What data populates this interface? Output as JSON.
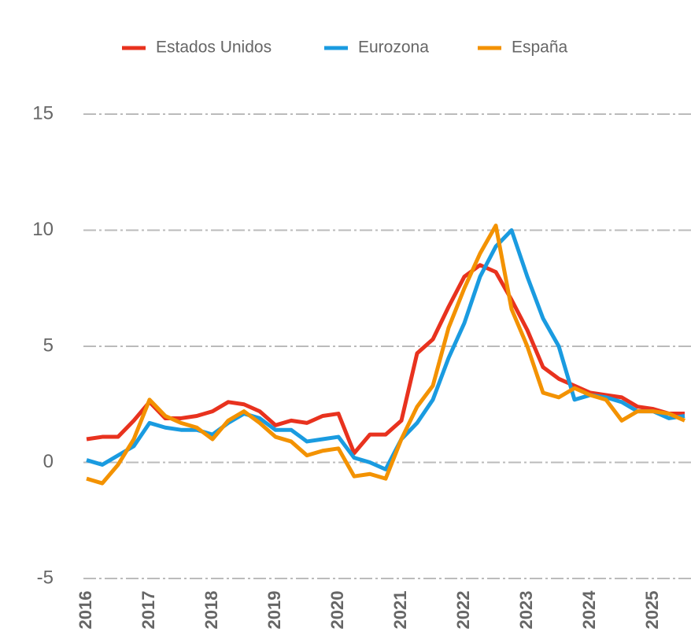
{
  "chart_data": {
    "type": "line",
    "x": [
      2016,
      2016.25,
      2016.5,
      2016.75,
      2017,
      2017.25,
      2017.5,
      2017.75,
      2018,
      2018.25,
      2018.5,
      2018.75,
      2019,
      2019.25,
      2019.5,
      2019.75,
      2020,
      2020.25,
      2020.5,
      2020.75,
      2021,
      2021.25,
      2021.5,
      2021.75,
      2022,
      2022.25,
      2022.5,
      2022.75,
      2023,
      2023.25,
      2023.5,
      2023.75,
      2024,
      2024.25,
      2024.5,
      2024.75,
      2025,
      2025.25,
      2025.5
    ],
    "series": [
      {
        "name": "Estados Unidos",
        "color": "#e8321e",
        "values": [
          1.0,
          1.1,
          1.1,
          1.8,
          2.6,
          1.9,
          1.9,
          2.0,
          2.2,
          2.6,
          2.5,
          2.2,
          1.6,
          1.8,
          1.7,
          2.0,
          2.1,
          0.4,
          1.2,
          1.2,
          1.8,
          4.7,
          5.3,
          6.7,
          8.0,
          8.5,
          8.2,
          7.0,
          5.7,
          4.1,
          3.6,
          3.3,
          3.0,
          2.9,
          2.8,
          2.4,
          2.3,
          2.1,
          2.1
        ]
      },
      {
        "name": "Eurozona",
        "color": "#1a9be0",
        "values": [
          0.1,
          -0.1,
          0.3,
          0.7,
          1.7,
          1.5,
          1.4,
          1.4,
          1.2,
          1.7,
          2.1,
          1.9,
          1.4,
          1.4,
          0.9,
          1.0,
          1.1,
          0.2,
          0.0,
          -0.3,
          1.0,
          1.7,
          2.7,
          4.5,
          6.0,
          8.0,
          9.3,
          10.0,
          8.0,
          6.2,
          5.0,
          2.7,
          2.9,
          2.8,
          2.6,
          2.2,
          2.2,
          1.9,
          2.0
        ]
      },
      {
        "name": "España",
        "color": "#f39200",
        "values": [
          -0.7,
          -0.9,
          -0.1,
          1.0,
          2.7,
          2.0,
          1.7,
          1.5,
          1.0,
          1.8,
          2.2,
          1.7,
          1.1,
          0.9,
          0.3,
          0.5,
          0.6,
          -0.6,
          -0.5,
          -0.7,
          1.0,
          2.4,
          3.3,
          5.8,
          7.5,
          9.0,
          10.2,
          6.6,
          5.0,
          3.0,
          2.8,
          3.2,
          2.9,
          2.7,
          1.8,
          2.2,
          2.2,
          2.1,
          1.8
        ]
      }
    ],
    "xlim": [
      2016,
      2025.6
    ],
    "xticks": [
      2016,
      2017,
      2018,
      2019,
      2020,
      2021,
      2022,
      2023,
      2024,
      2025
    ],
    "ylim": [
      -5,
      15
    ],
    "yticks": [
      -5,
      0,
      5,
      10,
      15
    ],
    "grid": true,
    "legend": "top"
  }
}
